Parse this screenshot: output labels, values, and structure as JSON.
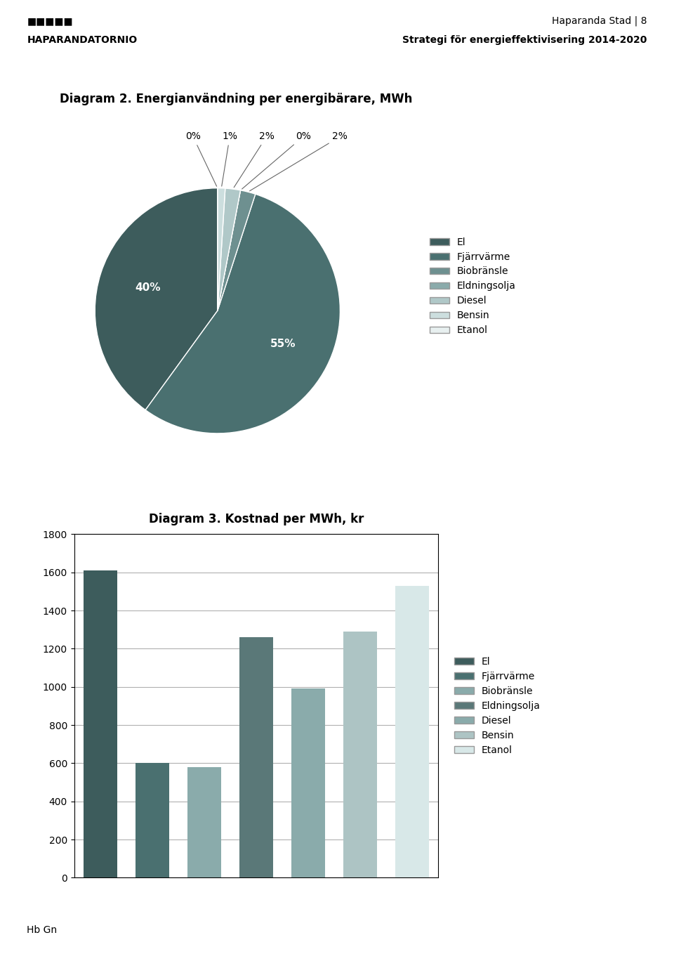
{
  "chart_data": [
    {
      "type": "pie",
      "title": "Diagram 2. Energianvändning per energibärare, MWh",
      "categories": [
        "El",
        "Fjärrvärme",
        "Biobränsle",
        "Eldningsolja",
        "Diesel",
        "Bensin",
        "Etanol"
      ],
      "values": [
        40,
        55,
        2,
        0,
        2,
        1,
        0
      ],
      "value_labels": [
        "40%",
        "55%",
        "2%",
        "0%",
        "2%",
        "1%",
        "0%"
      ],
      "colors": [
        "#3d5c5c",
        "#4a7070",
        "#6e9090",
        "#8aabab",
        "#b0c8c8",
        "#ccdede",
        "#e8f0f0"
      ],
      "data_labels": true,
      "legend": "center left",
      "annotations": [
        "■■■■■",
        "HAPARANDATORNIO",
        "Haparanda Stad | 8",
        "Strategi för energieffektivisering 2014-2020",
        "Hb Gn"
      ]
    },
    {
      "type": "bar",
      "title": "Diagram 3. Kostnad per MWh, kr",
      "categories": [
        "El",
        "Fjärrvärme",
        "Biobränsle",
        "Eldningsolja",
        "Diesel",
        "Bensin",
        "Etanol"
      ],
      "values": [
        1610,
        600,
        580,
        1260,
        990,
        1290,
        1530
      ],
      "colors": [
        "#3d5c5c",
        "#4a7070",
        "#8aabab",
        "#5a7878",
        "#8aabab",
        "#adc4c4",
        "#d8e8e8"
      ],
      "ylim": [
        0,
        1800
      ],
      "yticks": [
        0,
        200,
        400,
        600,
        800,
        1000,
        1200,
        1400,
        1600,
        1800
      ],
      "grid": true,
      "tick_labels": "y",
      "legend": "center left"
    }
  ]
}
